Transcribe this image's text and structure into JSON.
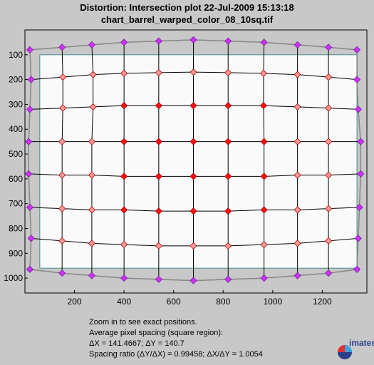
{
  "title_line1": "Distortion: Intersection plot  22-Jul-2009 15:13:18",
  "title_line2": "chart_barrel_warped_color_08_10sq.tif",
  "info": {
    "line1": "Zoom in to see exact positions.",
    "line2": "Average pixel spacing (square region):",
    "line3": "ΔX = 141.4667;  ΔY = 140.7",
    "line4": "Spacing ratio (ΔY/ΔX) = 0.99458;  ΔX/ΔY = 1.0054"
  },
  "logo_text": "imatest",
  "colors": {
    "edge_marker": "#cc33ff",
    "mid_marker": "#ff9999",
    "inner_marker": "#ff1111",
    "grid_line": "#000000",
    "inner_rect_fill": "#fafafa",
    "plot_bg": "#c8c8c8"
  },
  "chart_data": {
    "type": "scatter",
    "title": "Distortion: Intersection plot  22-Jul-2009 15:13:18",
    "subtitle": "chart_barrel_warped_color_08_10sq.tif",
    "xlim": [
      0,
      1380
    ],
    "ylim": [
      1060,
      0
    ],
    "x_ticks": [
      200,
      400,
      600,
      800,
      1000,
      1200
    ],
    "y_ticks": [
      100,
      200,
      300,
      400,
      500,
      600,
      700,
      800,
      900,
      1000
    ],
    "reference_rect": {
      "x0": 60,
      "x1": 1340,
      "y0": 100,
      "y1": 960
    },
    "columns_x": [
      10,
      150,
      270,
      400,
      540,
      680,
      820,
      965,
      1100,
      1225,
      1355
    ],
    "rows": [
      {
        "x": [
          20,
          150,
          270,
          400,
          540,
          680,
          820,
          965,
          1100,
          1225,
          1340
        ],
        "y": [
          80,
          70,
          60,
          50,
          45,
          40,
          45,
          50,
          60,
          70,
          80
        ]
      },
      {
        "x": [
          25,
          153,
          275,
          400,
          540,
          680,
          820,
          963,
          1100,
          1225,
          1340
        ],
        "y": [
          200,
          190,
          180,
          175,
          172,
          170,
          172,
          175,
          180,
          190,
          200
        ]
      },
      {
        "x": [
          20,
          153,
          275,
          400,
          540,
          680,
          820,
          963,
          1100,
          1225,
          1345
        ],
        "y": [
          320,
          315,
          310,
          305,
          305,
          305,
          305,
          305,
          310,
          315,
          320
        ]
      },
      {
        "x": [
          15,
          150,
          270,
          400,
          540,
          680,
          820,
          965,
          1100,
          1225,
          1355
        ],
        "y": [
          450,
          450,
          450,
          450,
          450,
          450,
          450,
          450,
          450,
          450,
          450
        ]
      },
      {
        "x": [
          15,
          150,
          270,
          400,
          540,
          680,
          820,
          965,
          1100,
          1225,
          1355
        ],
        "y": [
          580,
          585,
          585,
          590,
          590,
          590,
          590,
          590,
          585,
          585,
          580
        ]
      },
      {
        "x": [
          20,
          150,
          270,
          400,
          540,
          680,
          820,
          965,
          1100,
          1225,
          1350
        ],
        "y": [
          715,
          720,
          725,
          725,
          730,
          730,
          730,
          725,
          725,
          720,
          715
        ]
      },
      {
        "x": [
          25,
          150,
          270,
          400,
          540,
          680,
          820,
          965,
          1100,
          1225,
          1345
        ],
        "y": [
          840,
          850,
          860,
          865,
          870,
          870,
          870,
          865,
          860,
          850,
          840
        ]
      },
      {
        "x": [
          20,
          150,
          270,
          400,
          540,
          680,
          820,
          965,
          1100,
          1225,
          1340
        ],
        "y": [
          965,
          980,
          990,
          1000,
          1005,
          1010,
          1005,
          1000,
          990,
          980,
          965
        ]
      }
    ],
    "grid": false
  }
}
